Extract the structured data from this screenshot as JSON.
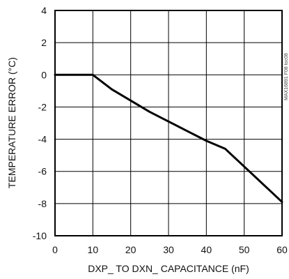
{
  "chart_data": {
    "type": "line",
    "title": "",
    "xlabel": "DXP_ TO DXN_ CAPACITANCE (nF)",
    "ylabel": "TEMPERATURE ERROR (°C)",
    "xlim": [
      0,
      60
    ],
    "ylim": [
      -10,
      4
    ],
    "grid": true,
    "x_ticks": [
      0,
      10,
      20,
      30,
      40,
      50,
      60
    ],
    "y_ticks": [
      4,
      2,
      0,
      -2,
      -4,
      -6,
      -8,
      -10
    ],
    "x_tick_labels": [
      "0",
      "10",
      "20",
      "30",
      "40",
      "50",
      "60"
    ],
    "y_tick_labels": [
      "4",
      "2",
      "0",
      "-2",
      "-4",
      "-6",
      "-8",
      "-10"
    ],
    "series": [
      {
        "x": [
          0,
          10,
          15,
          20,
          25,
          30,
          35,
          40,
          45,
          50,
          55,
          60
        ],
        "y": [
          0,
          0,
          -0.9,
          -1.6,
          -2.3,
          -2.9,
          -3.5,
          -4.1,
          -4.6,
          -5.7,
          -6.8,
          -7.9
        ],
        "color": "#000000"
      }
    ],
    "side_label": "MAX16891 F08 toc08"
  }
}
